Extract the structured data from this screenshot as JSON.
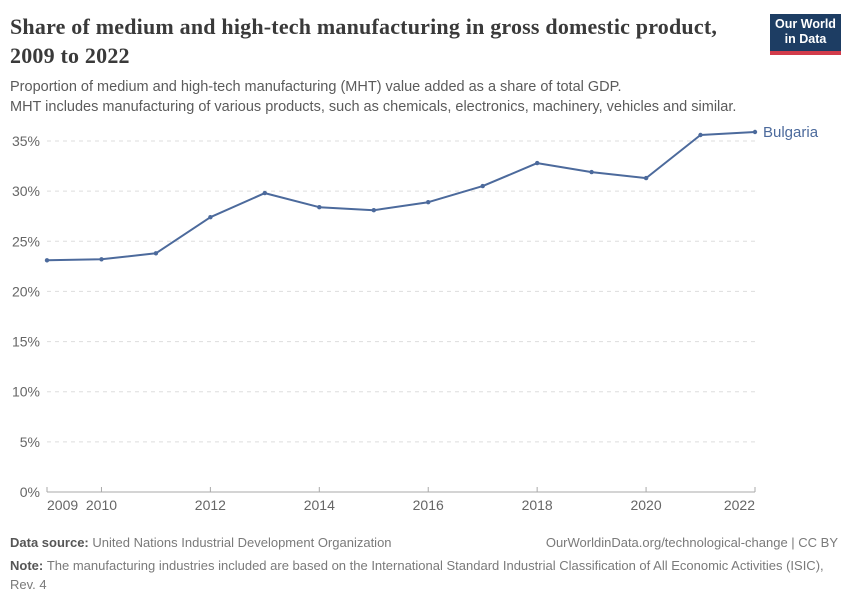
{
  "header": {
    "title": "Share of medium and high-tech manufacturing in gross domestic product, 2009 to 2022",
    "subtitle_line1": "Proportion of medium and high-tech manufacturing (MHT) value added as a share of total GDP.",
    "subtitle_line2": "MHT includes manufacturing of various products, such as chemicals, electronics, machinery, vehicles and similar.",
    "logo": {
      "line1": "Our World",
      "line2": "in Data",
      "bg_color": "#1d3d63",
      "stripe_color": "#d23c4b"
    }
  },
  "chart_data": {
    "type": "line",
    "title": "Share of medium and high-tech manufacturing in gross domestic product, 2009 to 2022",
    "x": [
      2009,
      2010,
      2011,
      2012,
      2013,
      2014,
      2015,
      2016,
      2017,
      2018,
      2019,
      2020,
      2021,
      2022
    ],
    "series": [
      {
        "name": "Bulgaria",
        "color": "#4c6a9c",
        "values": [
          23.1,
          23.2,
          23.8,
          27.4,
          29.8,
          28.4,
          28.1,
          28.9,
          30.5,
          32.8,
          31.9,
          31.3,
          35.6,
          35.9
        ]
      }
    ],
    "xlabel": "",
    "ylabel": "",
    "unit": "%",
    "ylim": [
      0,
      35
    ],
    "yticks": [
      0,
      5,
      10,
      15,
      20,
      25,
      30,
      35
    ],
    "ytick_suffix": "%",
    "xticks": [
      2009,
      2010,
      2012,
      2014,
      2016,
      2018,
      2020,
      2022
    ],
    "grid": "horizontal-dashed",
    "legend_position": "end-of-line-label",
    "colors": {
      "grid": "#dddddd",
      "axis": "#a9a9a9",
      "tick_label": "#666666"
    }
  },
  "footer": {
    "datasource_label": "Data source:",
    "datasource_value": "United Nations Industrial Development Organization",
    "attribution": "OurWorldinData.org/technological-change | CC BY",
    "note_label": "Note:",
    "note_line1": "The manufacturing industries included are based on the International Standard Industrial Classification of All Economic Activities (ISIC),",
    "note_line2": "Rev. 4"
  }
}
